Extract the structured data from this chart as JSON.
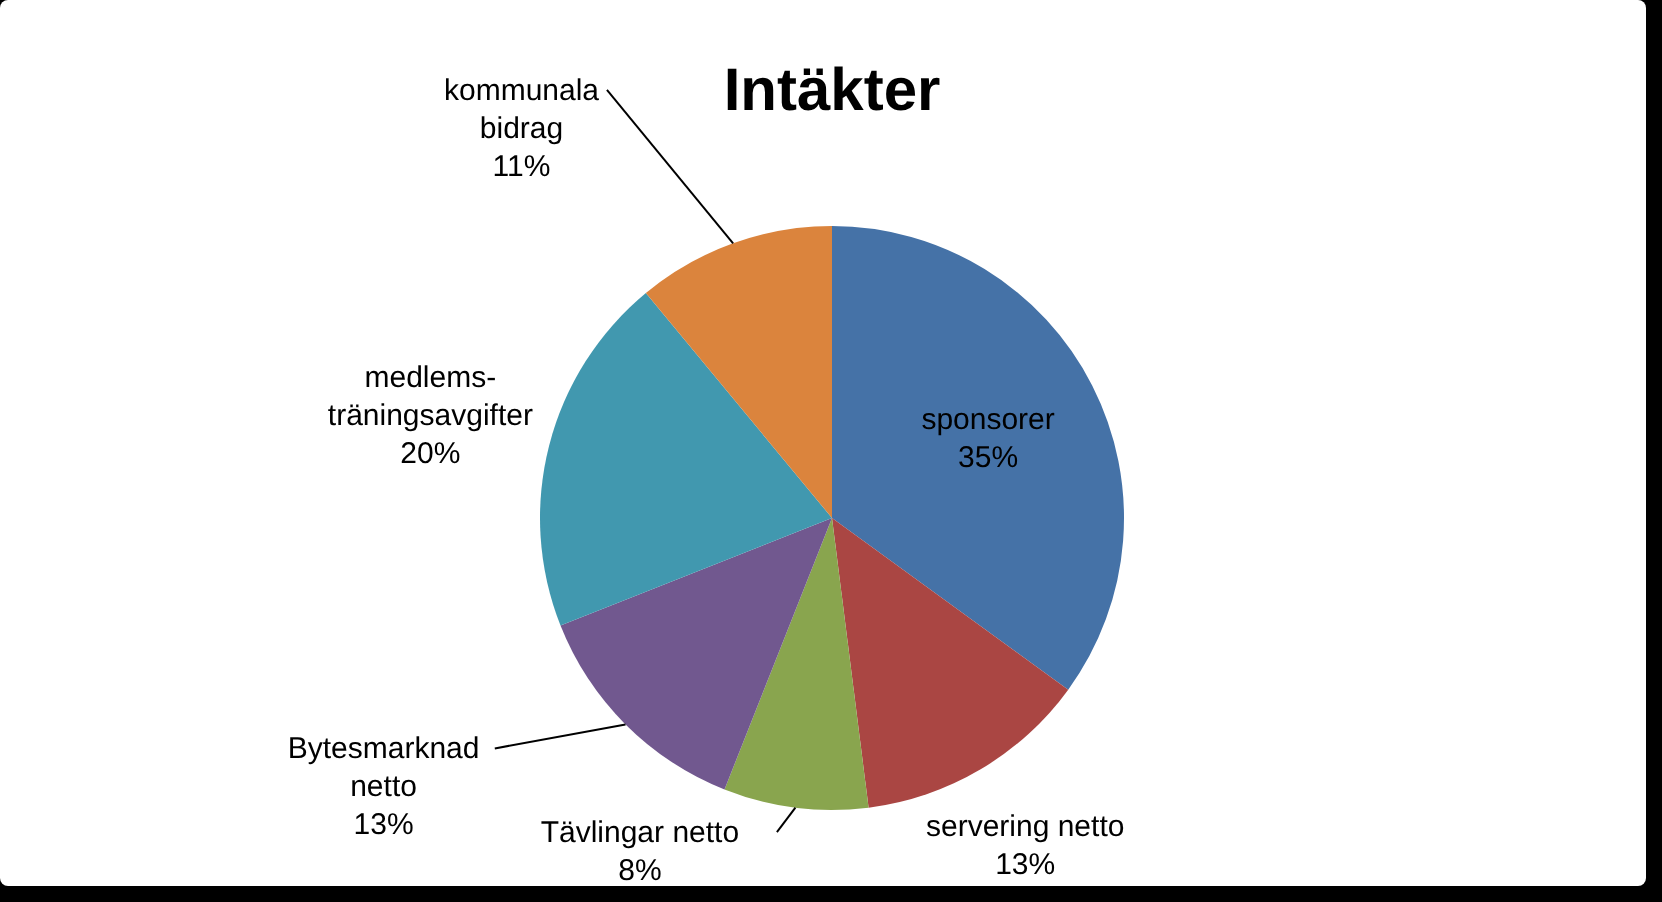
{
  "chart_data": {
    "type": "pie",
    "title": "Intäkter",
    "categories": [
      "sponsorer",
      "servering netto",
      "Tävlingar netto",
      "Bytesmarknad\nnetto",
      "medlems-\nträningsavgifter",
      "kommunala\nbidrag"
    ],
    "values": [
      35,
      13,
      8,
      13,
      20,
      11
    ],
    "value_labels": [
      "35%",
      "13%",
      "8%",
      "13%",
      "20%",
      "11%"
    ],
    "colors": [
      "#4572a7",
      "#aa4643",
      "#89a54e",
      "#71588f",
      "#4198af",
      "#db843d"
    ]
  }
}
